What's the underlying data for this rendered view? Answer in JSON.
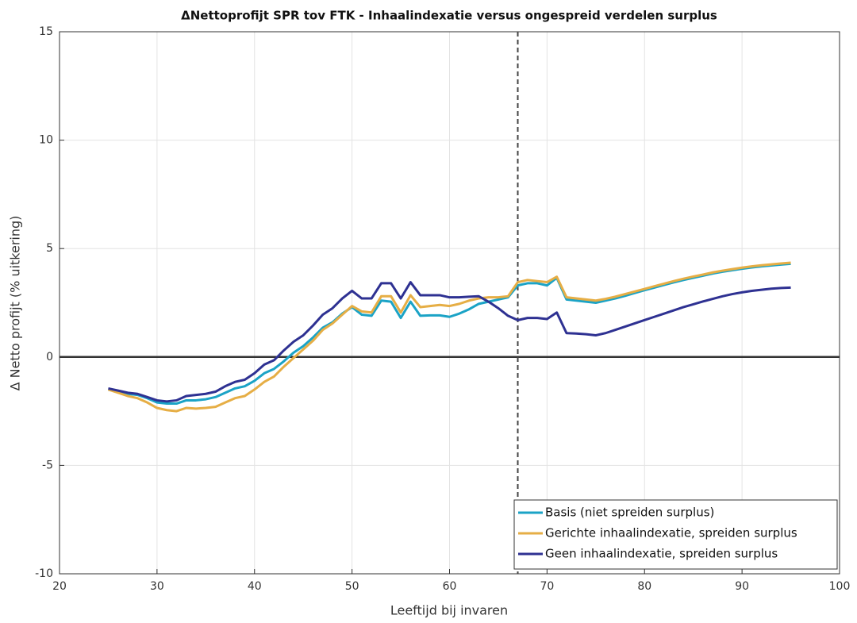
{
  "chart_data": {
    "type": "line",
    "title": "ΔNettoprofijt SPR tov FTK - Inhaalindexatie versus ongespreid verdelen surplus",
    "x_label": "Leeftijd bij invaren",
    "y_label": "Δ Netto profijt (% uitkering)",
    "x": [
      25,
      26,
      27,
      28,
      29,
      30,
      31,
      32,
      33,
      34,
      35,
      36,
      37,
      38,
      39,
      40,
      41,
      42,
      43,
      44,
      45,
      46,
      47,
      48,
      49,
      50,
      51,
      52,
      53,
      54,
      55,
      56,
      57,
      58,
      59,
      60,
      61,
      62,
      63,
      64,
      65,
      66,
      67,
      68,
      69,
      70,
      71,
      72,
      73,
      74,
      75,
      76,
      77,
      78,
      79,
      80,
      81,
      82,
      83,
      84,
      85,
      86,
      87,
      88,
      89,
      90,
      91,
      92,
      93,
      94,
      95
    ],
    "series": [
      {
        "name": "Basis (niet spreiden surplus)",
        "color": "#1ba3c6",
        "values": [
          -1.5,
          -1.6,
          -1.7,
          -1.75,
          -1.9,
          -2.1,
          -2.15,
          -2.15,
          -2.0,
          -2.0,
          -1.95,
          -1.85,
          -1.65,
          -1.45,
          -1.35,
          -1.1,
          -0.75,
          -0.55,
          -0.2,
          0.2,
          0.5,
          0.9,
          1.35,
          1.6,
          2.0,
          2.3,
          1.95,
          1.9,
          2.6,
          2.55,
          1.8,
          2.55,
          1.9,
          1.92,
          1.92,
          1.85,
          2.0,
          2.2,
          2.45,
          2.55,
          2.65,
          2.75,
          3.3,
          3.4,
          3.4,
          3.3,
          3.65,
          2.65,
          2.6,
          2.55,
          2.5,
          2.6,
          2.7,
          2.82,
          2.95,
          3.08,
          3.2,
          3.32,
          3.44,
          3.55,
          3.65,
          3.75,
          3.85,
          3.93,
          4.0,
          4.07,
          4.13,
          4.18,
          4.22,
          4.26,
          4.3
        ]
      },
      {
        "name": "Gerichte inhaalindexatie, spreiden surplus",
        "color": "#e6ae45",
        "values": [
          -1.5,
          -1.65,
          -1.8,
          -1.9,
          -2.1,
          -2.35,
          -2.45,
          -2.5,
          -2.35,
          -2.38,
          -2.35,
          -2.3,
          -2.1,
          -1.9,
          -1.8,
          -1.5,
          -1.15,
          -0.9,
          -0.45,
          -0.05,
          0.35,
          0.75,
          1.25,
          1.55,
          1.95,
          2.35,
          2.1,
          2.05,
          2.8,
          2.8,
          2.05,
          2.85,
          2.3,
          2.35,
          2.4,
          2.35,
          2.45,
          2.6,
          2.7,
          2.75,
          2.75,
          2.8,
          3.45,
          3.55,
          3.5,
          3.45,
          3.7,
          2.75,
          2.7,
          2.65,
          2.6,
          2.68,
          2.78,
          2.9,
          3.02,
          3.14,
          3.26,
          3.38,
          3.5,
          3.61,
          3.71,
          3.8,
          3.9,
          3.98,
          4.05,
          4.12,
          4.18,
          4.23,
          4.27,
          4.31,
          4.35
        ]
      },
      {
        "name": "Geen inhaalindexatie, spreiden surplus",
        "color": "#2e3192",
        "values": [
          -1.45,
          -1.55,
          -1.65,
          -1.7,
          -1.85,
          -2.0,
          -2.05,
          -2.0,
          -1.8,
          -1.75,
          -1.7,
          -1.6,
          -1.35,
          -1.15,
          -1.05,
          -0.75,
          -0.35,
          -0.15,
          0.3,
          0.7,
          1.0,
          1.45,
          1.95,
          2.25,
          2.7,
          3.05,
          2.7,
          2.7,
          3.4,
          3.4,
          2.7,
          3.45,
          2.85,
          2.85,
          2.85,
          2.75,
          2.75,
          2.78,
          2.8,
          2.55,
          2.25,
          1.9,
          1.7,
          1.8,
          1.8,
          1.75,
          2.05,
          1.1,
          1.08,
          1.05,
          1.0,
          1.1,
          1.25,
          1.4,
          1.55,
          1.7,
          1.85,
          2.0,
          2.15,
          2.3,
          2.43,
          2.56,
          2.68,
          2.8,
          2.9,
          2.98,
          3.05,
          3.1,
          3.15,
          3.18,
          3.2
        ]
      }
    ],
    "xlim": [
      20,
      100
    ],
    "ylim": [
      -10,
      15
    ],
    "xticks": [
      20,
      30,
      40,
      50,
      60,
      70,
      80,
      90,
      100
    ],
    "yticks": [
      -10,
      -5,
      0,
      5,
      10,
      15
    ],
    "grid": true,
    "legend": "lower right",
    "vline": 67,
    "hline": 0
  }
}
